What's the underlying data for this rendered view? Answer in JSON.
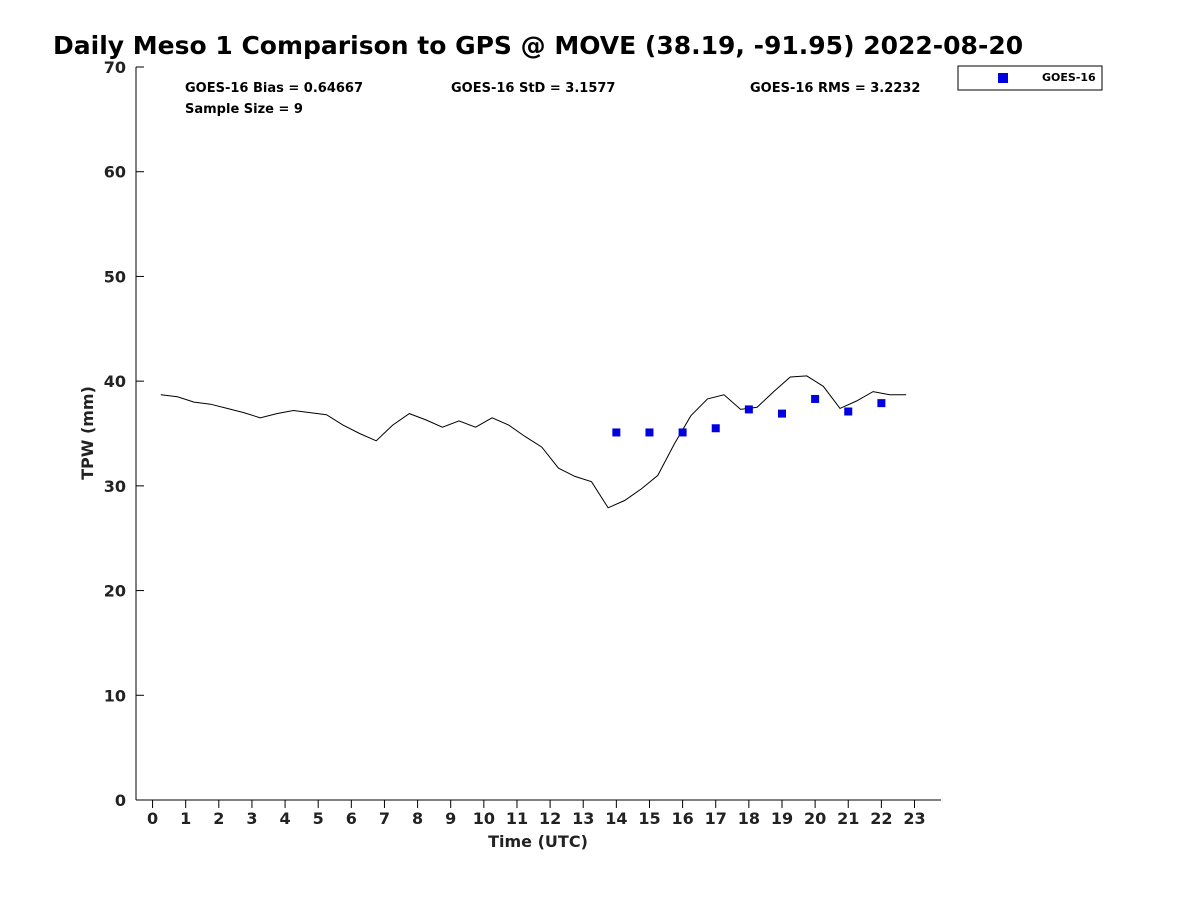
{
  "chart_data": {
    "type": "line",
    "title": "Daily Meso 1 Comparison to GPS @ MOVE (38.19, -91.95) 2022-08-20",
    "xlabel": "Time (UTC)",
    "ylabel": "TPW (mm)",
    "xlim": [
      -0.5,
      23.8
    ],
    "ylim": [
      0,
      70
    ],
    "xticks": [
      0,
      1,
      2,
      3,
      4,
      5,
      6,
      7,
      8,
      9,
      10,
      11,
      12,
      13,
      14,
      15,
      16,
      17,
      18,
      19,
      20,
      21,
      22,
      23
    ],
    "yticks": [
      0,
      10,
      20,
      30,
      40,
      50,
      60,
      70
    ],
    "grid": false,
    "legend_position": "top-right (outside plot)",
    "stats": {
      "bias": "GOES-16 Bias = 0.64667",
      "std": "GOES-16 StD = 3.1577",
      "rms": "GOES-16 RMS = 3.2232",
      "sample_size": "Sample Size = 9"
    },
    "series": [
      {
        "kind": "line",
        "color": "#000000",
        "x": [
          0.25,
          0.75,
          1.25,
          1.75,
          2.25,
          2.75,
          3.25,
          3.75,
          4.25,
          4.75,
          5.25,
          5.75,
          6.25,
          6.75,
          7.25,
          7.75,
          8.25,
          8.75,
          9.25,
          9.75,
          10.25,
          10.75,
          11.25,
          11.75,
          12.25,
          12.75,
          13.25,
          13.75,
          14.25,
          14.75,
          15.25,
          15.75,
          16.25,
          16.75,
          17.25,
          17.75,
          18.25,
          18.75,
          19.25,
          19.75,
          20.25,
          20.75,
          21.25,
          21.75,
          22.25,
          22.75
        ],
        "y": [
          38.7,
          38.5,
          38.0,
          37.8,
          37.4,
          37.0,
          36.5,
          36.9,
          37.2,
          37.0,
          36.8,
          35.8,
          35.0,
          34.3,
          35.8,
          36.9,
          36.3,
          35.6,
          36.2,
          35.6,
          36.5,
          35.8,
          34.7,
          33.7,
          31.7,
          30.9,
          30.4,
          27.9,
          28.6,
          29.7,
          31.0,
          34.0,
          36.7,
          38.3,
          38.7,
          37.3,
          37.5,
          39.0,
          40.4,
          40.5,
          39.5,
          37.4,
          38.1,
          39.0,
          38.7,
          38.7
        ]
      },
      {
        "name": "GOES-16",
        "kind": "scatter",
        "color": "#0000e0",
        "x": [
          14,
          15,
          16,
          17,
          18,
          19,
          20,
          21,
          22
        ],
        "y": [
          35.1,
          35.1,
          35.1,
          35.5,
          37.3,
          36.9,
          38.3,
          37.1,
          37.9
        ]
      }
    ]
  }
}
